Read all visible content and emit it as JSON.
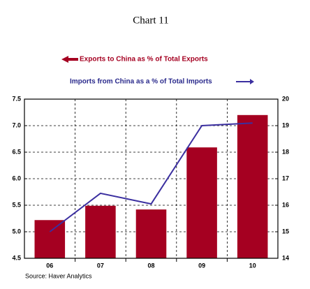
{
  "chart_data": {
    "type": "bar",
    "title": "Chart 11",
    "source": "Source: Haver Analytics",
    "categories": [
      "06",
      "07",
      "08",
      "09",
      "10"
    ],
    "series": [
      {
        "name": "Exports to China as % of Total Exports",
        "color": "#a50021",
        "type": "bar",
        "values": [
          5.22,
          5.49,
          5.42,
          6.59,
          7.2
        ]
      },
      {
        "name": "Imports from China as a % of Total Imports",
        "color": "#3b2fa0",
        "type": "line",
        "axis": "y2",
        "values": [
          15.0,
          16.45,
          16.05,
          19.0,
          19.1
        ]
      }
    ],
    "ylim": [
      4.5,
      7.5
    ],
    "yticks": [
      4.5,
      {
        "value": 5,
        "label": "5.0"
      },
      5.5,
      {
        "value": 6,
        "label": "6.0"
      },
      6.5,
      {
        "value": 7,
        "label": "7.0"
      },
      7.5
    ],
    "y2lim": [
      14,
      20
    ],
    "y2ticks": [
      14,
      15,
      16,
      17,
      18,
      19,
      20
    ],
    "grid": true
  }
}
